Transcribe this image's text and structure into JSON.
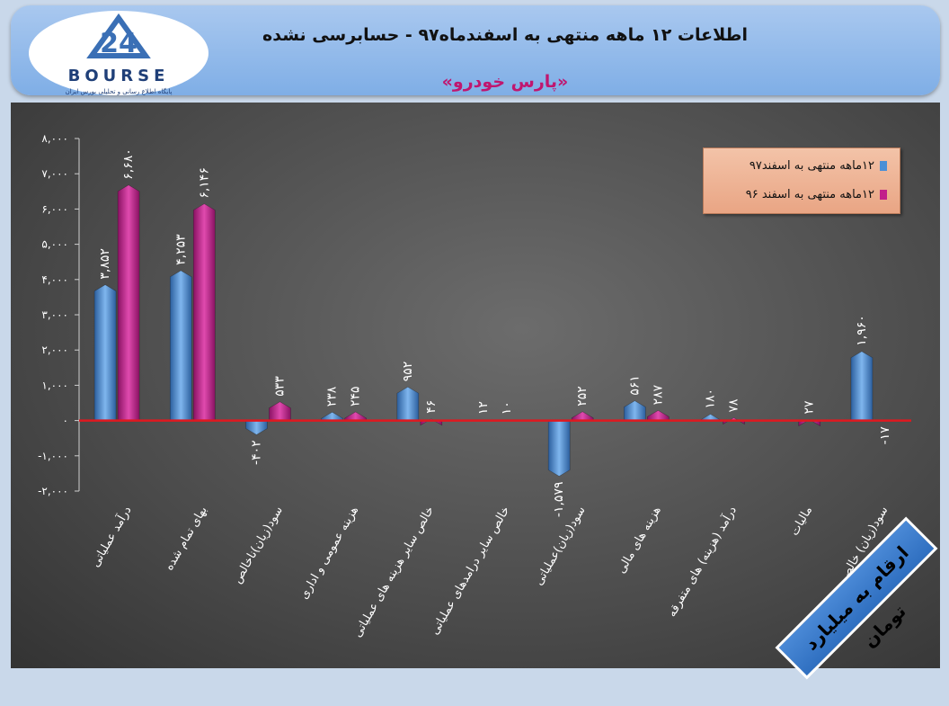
{
  "header": {
    "title": "اطلاعات ۱۲ ماهه منتهی به اسفندماه۹۷ - حسابرسی نشده",
    "subtitle": "«پارس خودرو»",
    "logo_name": "BOURSE",
    "logo_sub": "پایگاه اطلاع رسانی و تحلیلی بورس ایران"
  },
  "banner": "ارقام به میلیارد تومان",
  "colors": {
    "blue": "#4a8fd6",
    "magenta": "#c21f8a",
    "zero_line": "#e0181f"
  },
  "chart_data": {
    "type": "bar",
    "ylim": [
      -2000,
      8000
    ],
    "yticks": [
      -2000,
      -1000,
      0,
      1000,
      2000,
      3000,
      4000,
      5000,
      6000,
      7000,
      8000
    ],
    "ytick_labels": [
      "-۲,۰۰۰",
      "-۱,۰۰۰",
      "۰",
      "۱,۰۰۰",
      "۲,۰۰۰",
      "۳,۰۰۰",
      "۴,۰۰۰",
      "۵,۰۰۰",
      "۶,۰۰۰",
      "۷,۰۰۰",
      "۸,۰۰۰"
    ],
    "legend_position": "top-right",
    "categories": [
      "درآمد عملیاتی",
      "بهای تمام شده",
      "سود(زیان)ناخالص",
      "هزینه عمومی و اداری",
      "خالص سایر هزینه های عملیاتی",
      "خالص سایر درامدهای عملیاتی",
      "سود(زیان)عملیاتی",
      "هزینه های مالی",
      "درآمد (هزینه) های متفرقه",
      "مالیات",
      "سود(زیان) خالص"
    ],
    "series": [
      {
        "name": "۱۲ماهه منتهی به اسفند۹۷",
        "values": [
          3852,
          4253,
          -402,
          238,
          952,
          12,
          -1579,
          561,
          180,
          0,
          1960
        ],
        "labels": [
          "۳,۸۵۲",
          "۴,۲۵۳",
          "-۴۰۲",
          "۲۳۸",
          "۹۵۲",
          "۱۲",
          "-۱,۵۷۹",
          "۵۶۱",
          "۱۸۰",
          "",
          "۱,۹۶۰"
        ]
      },
      {
        "name": "۱۲ماهه منتهی به اسفند ۹۶",
        "values": [
          6680,
          6146,
          533,
          245,
          46,
          10,
          252,
          287,
          78,
          27,
          -17
        ],
        "labels": [
          "۶,۶۸۰",
          "۶,۱۴۶",
          "۵۳۳",
          "۲۴۵",
          "۴۶",
          "۱۰",
          "۲۵۲",
          "۲۸۷",
          "۷۸",
          "۲۷",
          "-۱۷"
        ]
      }
    ]
  }
}
